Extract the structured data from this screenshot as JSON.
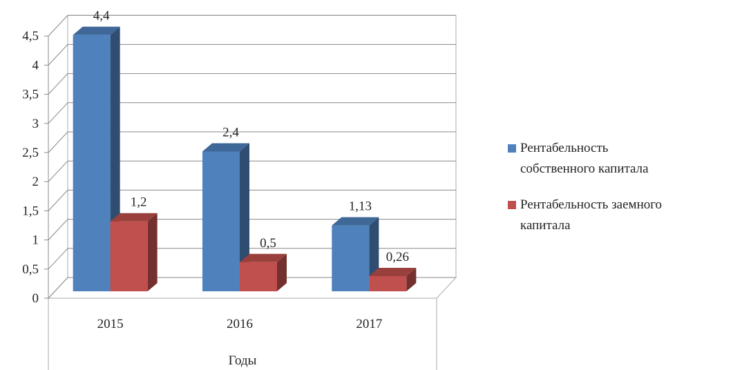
{
  "chart_data": {
    "type": "bar3d",
    "x_label": "Годы",
    "categories": [
      "2015",
      "2016",
      "2017"
    ],
    "series": [
      {
        "name": "Рентабельность собственного капитала",
        "color": "#4f81bd",
        "values": [
          4.4,
          2.4,
          1.13
        ],
        "value_labels": [
          "4,4",
          "2,4",
          "1,13"
        ]
      },
      {
        "name": "Рентабельность заемного капитала",
        "color": "#c0504d",
        "values": [
          1.2,
          0.5,
          0.26
        ],
        "value_labels": [
          "1,2",
          "0,5",
          "0,26"
        ]
      }
    ],
    "ylim": [
      0,
      4.5
    ],
    "yticks": [
      0,
      {
        "value": 0.5,
        "label": "0,5"
      },
      1,
      {
        "value": 1.5,
        "label": "1,5"
      },
      2,
      {
        "value": 2.5,
        "label": "2,5"
      },
      3,
      {
        "value": 3.5,
        "label": "3,5"
      },
      4,
      {
        "value": 4.5,
        "label": "4,5"
      }
    ],
    "grid": true,
    "legend": "right"
  }
}
